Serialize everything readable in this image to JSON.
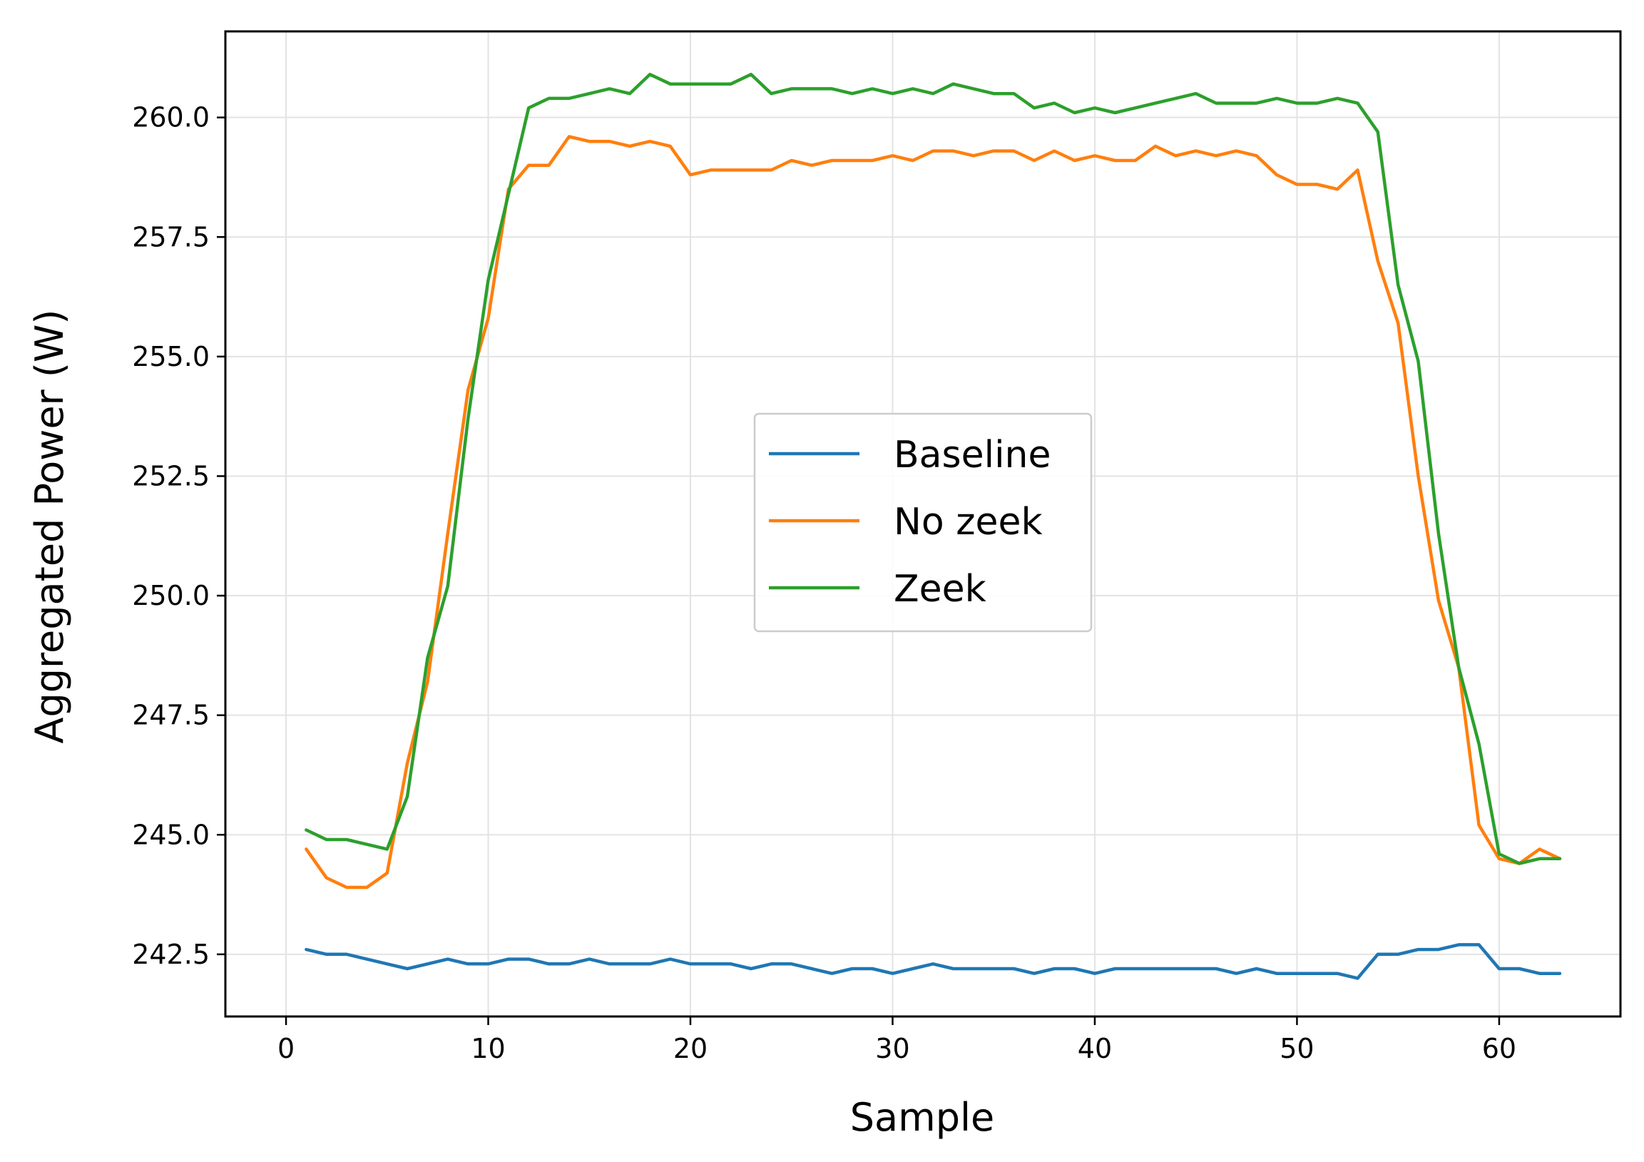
{
  "chart_data": {
    "type": "line",
    "title": "",
    "xlabel": "Sample",
    "ylabel": "Aggregated Power (W)",
    "xlim": [
      -3,
      66
    ],
    "ylim": [
      241.2,
      261.8
    ],
    "xticks": [
      0,
      10,
      20,
      30,
      40,
      50,
      60
    ],
    "xtick_labels": [
      "0",
      "10",
      "20",
      "30",
      "40",
      "50",
      "60"
    ],
    "yticks": [
      242.5,
      245.0,
      247.5,
      250.0,
      252.5,
      255.0,
      257.5,
      260.0
    ],
    "ytick_labels": [
      "242.5",
      "245.0",
      "247.5",
      "250.0",
      "252.5",
      "255.0",
      "257.5",
      "260.0"
    ],
    "grid": true,
    "legend_position": "center",
    "x": [
      1,
      2,
      3,
      4,
      5,
      6,
      7,
      8,
      9,
      10,
      11,
      12,
      13,
      14,
      15,
      16,
      17,
      18,
      19,
      20,
      21,
      22,
      23,
      24,
      25,
      26,
      27,
      28,
      29,
      30,
      31,
      32,
      33,
      34,
      35,
      36,
      37,
      38,
      39,
      40,
      41,
      42,
      43,
      44,
      45,
      46,
      47,
      48,
      49,
      50,
      51,
      52,
      53,
      54,
      55,
      56,
      57,
      58,
      59,
      60,
      61,
      62,
      63
    ],
    "series": [
      {
        "name": "Baseline",
        "color": "#1f77b4",
        "values": [
          242.6,
          242.5,
          242.5,
          242.4,
          242.3,
          242.2,
          242.3,
          242.4,
          242.3,
          242.3,
          242.4,
          242.4,
          242.3,
          242.3,
          242.4,
          242.3,
          242.3,
          242.3,
          242.4,
          242.3,
          242.3,
          242.3,
          242.2,
          242.3,
          242.3,
          242.2,
          242.1,
          242.2,
          242.2,
          242.1,
          242.2,
          242.3,
          242.2,
          242.2,
          242.2,
          242.2,
          242.1,
          242.2,
          242.2,
          242.1,
          242.2,
          242.2,
          242.2,
          242.2,
          242.2,
          242.2,
          242.1,
          242.2,
          242.1,
          242.1,
          242.1,
          242.1,
          242.0,
          242.5,
          242.5,
          242.6,
          242.6,
          242.7,
          242.7,
          242.2,
          242.2,
          242.1,
          242.1
        ]
      },
      {
        "name": "No zeek",
        "color": "#ff7f0e",
        "values": [
          244.7,
          244.1,
          243.9,
          243.9,
          244.2,
          246.5,
          248.2,
          251.3,
          254.3,
          255.8,
          258.5,
          259.0,
          259.0,
          259.6,
          259.5,
          259.5,
          259.4,
          259.5,
          259.4,
          258.8,
          258.9,
          258.9,
          258.9,
          258.9,
          259.1,
          259.0,
          259.1,
          259.1,
          259.1,
          259.2,
          259.1,
          259.3,
          259.3,
          259.2,
          259.3,
          259.3,
          259.1,
          259.3,
          259.1,
          259.2,
          259.1,
          259.1,
          259.4,
          259.2,
          259.3,
          259.2,
          259.3,
          259.2,
          258.8,
          258.6,
          258.6,
          258.5,
          258.9,
          257.0,
          255.7,
          252.5,
          249.9,
          248.5,
          245.2,
          244.5,
          244.4,
          244.7,
          244.5
        ]
      },
      {
        "name": "Zeek",
        "color": "#2ca02c",
        "values": [
          245.1,
          244.9,
          244.9,
          244.8,
          244.7,
          245.8,
          248.7,
          250.2,
          253.7,
          256.6,
          258.4,
          260.2,
          260.4,
          260.4,
          260.5,
          260.6,
          260.5,
          260.9,
          260.7,
          260.7,
          260.7,
          260.7,
          260.9,
          260.5,
          260.6,
          260.6,
          260.6,
          260.5,
          260.6,
          260.5,
          260.6,
          260.5,
          260.7,
          260.6,
          260.5,
          260.5,
          260.2,
          260.3,
          260.1,
          260.2,
          260.1,
          260.2,
          260.3,
          260.4,
          260.5,
          260.3,
          260.3,
          260.3,
          260.4,
          260.3,
          260.3,
          260.4,
          260.3,
          259.7,
          256.5,
          254.9,
          251.3,
          248.5,
          246.9,
          244.6,
          244.4,
          244.5,
          244.5
        ]
      }
    ]
  }
}
